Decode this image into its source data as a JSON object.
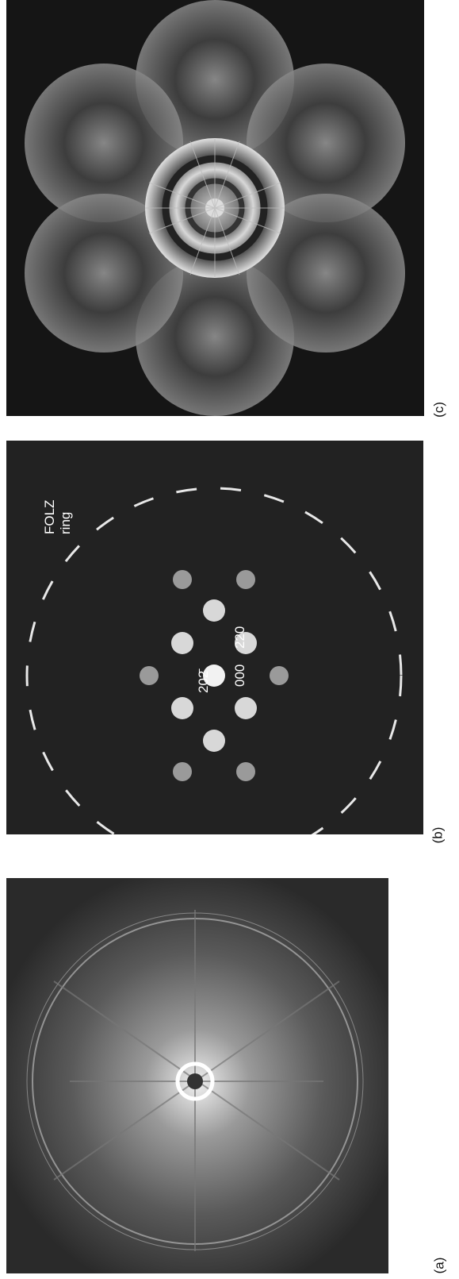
{
  "panels": [
    {
      "id": "a",
      "caption": "(a)"
    },
    {
      "id": "b",
      "caption": "(b)",
      "labels": {
        "folz_line1": "FOLZ",
        "folz_line2": "ring",
        "origin": "000",
        "spot_220": "220",
        "spot_202": "202̄"
      }
    },
    {
      "id": "c",
      "caption": "(c)"
    }
  ],
  "colors": {
    "background": "#ffffff",
    "panel_dark": "#222222",
    "spot": "#f2f2f2"
  }
}
